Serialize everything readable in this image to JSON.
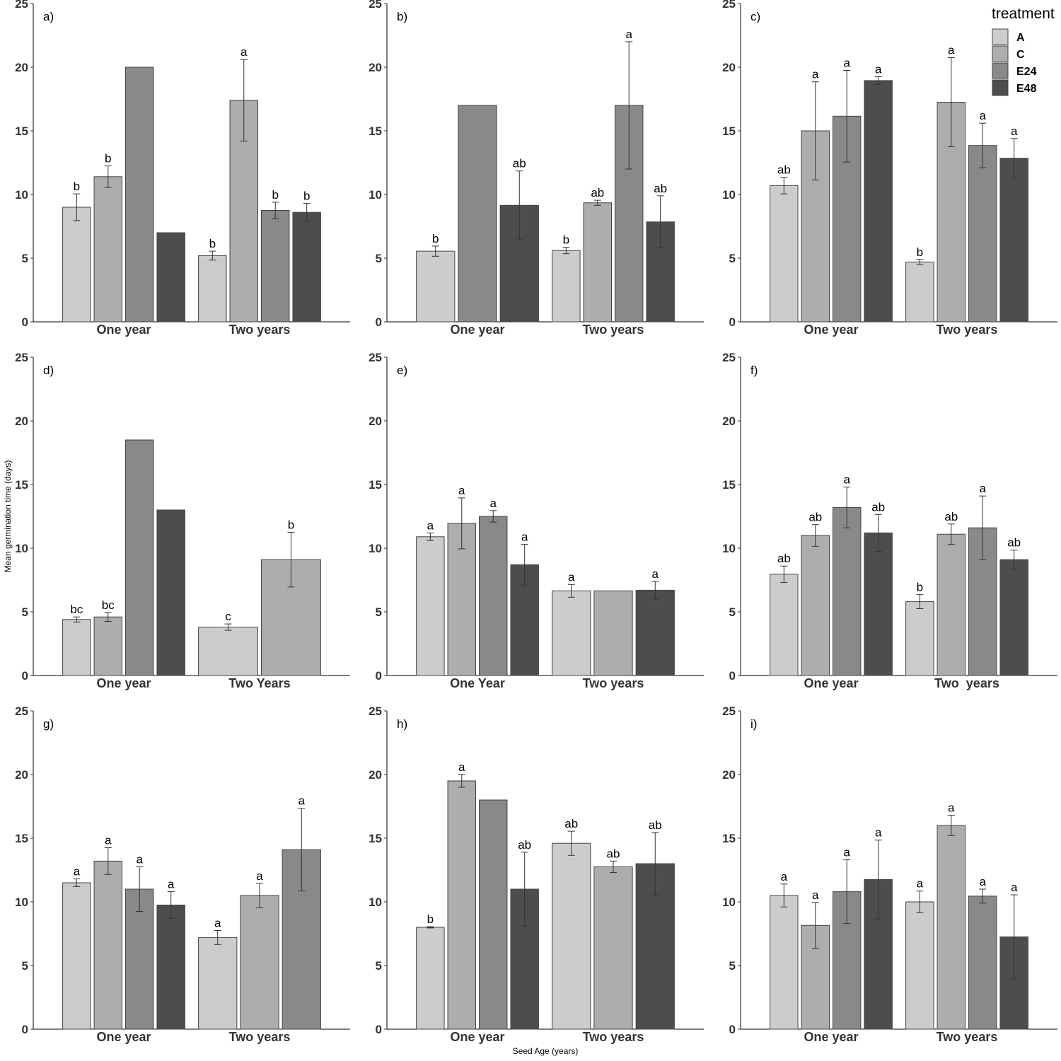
{
  "figure": {
    "ylabel": "Mean germination time (days)",
    "xlabel": "Seed Age (years)"
  },
  "legend": {
    "title": "treatment",
    "placement": "top-right",
    "entries": [
      {
        "name": "A",
        "color": "#cccccc"
      },
      {
        "name": "C",
        "color": "#adadad"
      },
      {
        "name": "E24",
        "color": "#898989"
      },
      {
        "name": "E48",
        "color": "#4d4d4d"
      }
    ]
  },
  "colors": {
    "A": "#cccccc",
    "C": "#adadad",
    "E24": "#898989",
    "E48": "#4d4d4d"
  },
  "chart_data": [
    {
      "type": "bar",
      "panel": "a)",
      "ylim": [
        0,
        25
      ],
      "yticks": [
        0,
        5,
        10,
        15,
        20,
        25
      ],
      "grid": false,
      "groups": [
        {
          "label": "One year",
          "bars": [
            {
              "t": "A",
              "value": 9.0,
              "err": 1.05,
              "sig": "b"
            },
            {
              "t": "C",
              "value": 11.4,
              "err": 0.85,
              "sig": "b"
            },
            {
              "t": "E24",
              "value": 20.0,
              "err": null,
              "sig": ""
            },
            {
              "t": "E48",
              "value": 7.0,
              "err": null,
              "sig": ""
            }
          ]
        },
        {
          "label": "Two years",
          "bars": [
            {
              "t": "A",
              "value": 5.2,
              "err": 0.35,
              "sig": "b"
            },
            {
              "t": "C",
              "value": 17.4,
              "err": 3.2,
              "sig": "a"
            },
            {
              "t": "E24",
              "value": 8.75,
              "err": 0.65,
              "sig": "b"
            },
            {
              "t": "E48",
              "value": 8.6,
              "err": 0.7,
              "sig": "b"
            }
          ]
        }
      ]
    },
    {
      "type": "bar",
      "panel": "b)",
      "ylim": [
        0,
        25
      ],
      "yticks": [
        0,
        5,
        10,
        15,
        20,
        25
      ],
      "grid": false,
      "groups": [
        {
          "label": "One year",
          "bars": [
            {
              "t": "A",
              "value": 5.55,
              "err": 0.4,
              "sig": "b"
            },
            {
              "t": "E24",
              "value": 17.0,
              "err": null,
              "sig": ""
            },
            {
              "t": "E48",
              "value": 9.15,
              "err": 2.7,
              "sig": "ab"
            }
          ]
        },
        {
          "label": "Two years",
          "bars": [
            {
              "t": "A",
              "value": 5.6,
              "err": 0.25,
              "sig": "b"
            },
            {
              "t": "C",
              "value": 9.35,
              "err": 0.2,
              "sig": "ab"
            },
            {
              "t": "E24",
              "value": 17.0,
              "err": 5.0,
              "sig": "a"
            },
            {
              "t": "E48",
              "value": 7.85,
              "err": 2.05,
              "sig": "ab"
            }
          ]
        }
      ]
    },
    {
      "type": "bar",
      "panel": "c)",
      "ylim": [
        0,
        25
      ],
      "yticks": [
        0,
        5,
        10,
        15,
        20,
        25
      ],
      "grid": false,
      "groups": [
        {
          "label": "One year",
          "bars": [
            {
              "t": "A",
              "value": 10.7,
              "err": 0.65,
              "sig": "ab"
            },
            {
              "t": "C",
              "value": 15.0,
              "err": 3.85,
              "sig": "a"
            },
            {
              "t": "E24",
              "value": 16.15,
              "err": 3.6,
              "sig": "a"
            },
            {
              "t": "E48",
              "value": 18.95,
              "err": 0.3,
              "sig": "a"
            }
          ]
        },
        {
          "label": "Two years",
          "bars": [
            {
              "t": "A",
              "value": 4.7,
              "err": 0.2,
              "sig": "b"
            },
            {
              "t": "C",
              "value": 17.25,
              "err": 3.5,
              "sig": "a"
            },
            {
              "t": "E24",
              "value": 13.85,
              "err": 1.75,
              "sig": "a"
            },
            {
              "t": "E48",
              "value": 12.85,
              "err": 1.55,
              "sig": "a"
            }
          ]
        }
      ]
    },
    {
      "type": "bar",
      "panel": "d)",
      "ylim": [
        0,
        25
      ],
      "yticks": [
        0,
        5,
        10,
        15,
        20,
        25
      ],
      "grid": false,
      "groups": [
        {
          "label": "One year",
          "bars": [
            {
              "t": "A",
              "value": 4.4,
              "err": 0.2,
              "sig": "bc"
            },
            {
              "t": "C",
              "value": 4.6,
              "err": 0.35,
              "sig": "bc"
            },
            {
              "t": "E24",
              "value": 18.5,
              "err": null,
              "sig": ""
            },
            {
              "t": "E48",
              "value": 13.0,
              "err": null,
              "sig": ""
            }
          ]
        },
        {
          "label": "Two Years",
          "bars": [
            {
              "t": "A",
              "value": 3.8,
              "err": 0.25,
              "sig": "c"
            },
            {
              "t": "C",
              "value": 9.1,
              "err": 2.15,
              "sig": "b"
            }
          ]
        }
      ]
    },
    {
      "type": "bar",
      "panel": "e)",
      "ylim": [
        0,
        25
      ],
      "yticks": [
        0,
        5,
        10,
        15,
        20,
        25
      ],
      "grid": false,
      "groups": [
        {
          "label": "One Year",
          "bars": [
            {
              "t": "A",
              "value": 10.9,
              "err": 0.3,
              "sig": "a"
            },
            {
              "t": "C",
              "value": 11.95,
              "err": 2.0,
              "sig": "a"
            },
            {
              "t": "E24",
              "value": 12.5,
              "err": 0.45,
              "sig": "a"
            },
            {
              "t": "E48",
              "value": 8.7,
              "err": 1.6,
              "sig": "a"
            }
          ]
        },
        {
          "label": "Two years",
          "bars": [
            {
              "t": "A",
              "value": 6.65,
              "err": 0.5,
              "sig": "a"
            },
            {
              "t": "C",
              "value": 6.65,
              "err": null,
              "sig": ""
            },
            {
              "t": "E48",
              "value": 6.7,
              "err": 0.7,
              "sig": "a"
            }
          ]
        }
      ]
    },
    {
      "type": "bar",
      "panel": "f)",
      "ylim": [
        0,
        25
      ],
      "yticks": [
        0,
        5,
        10,
        15,
        20,
        25
      ],
      "grid": false,
      "groups": [
        {
          "label": "One year",
          "bars": [
            {
              "t": "A",
              "value": 7.95,
              "err": 0.65,
              "sig": "ab"
            },
            {
              "t": "C",
              "value": 11.0,
              "err": 0.85,
              "sig": "ab"
            },
            {
              "t": "E24",
              "value": 13.2,
              "err": 1.6,
              "sig": "a"
            },
            {
              "t": "E48",
              "value": 11.2,
              "err": 1.45,
              "sig": "ab"
            }
          ]
        },
        {
          "label": "Two  years",
          "bars": [
            {
              "t": "A",
              "value": 5.8,
              "err": 0.55,
              "sig": "b"
            },
            {
              "t": "C",
              "value": 11.1,
              "err": 0.8,
              "sig": "ab"
            },
            {
              "t": "E24",
              "value": 11.6,
              "err": 2.5,
              "sig": "a"
            },
            {
              "t": "E48",
              "value": 9.1,
              "err": 0.75,
              "sig": "ab"
            }
          ]
        }
      ]
    },
    {
      "type": "bar",
      "panel": "g)",
      "ylim": [
        0,
        25
      ],
      "yticks": [
        0,
        5,
        10,
        15,
        20,
        25
      ],
      "grid": false,
      "groups": [
        {
          "label": "One year",
          "bars": [
            {
              "t": "A",
              "value": 11.5,
              "err": 0.3,
              "sig": "a"
            },
            {
              "t": "C",
              "value": 13.2,
              "err": 1.05,
              "sig": "a"
            },
            {
              "t": "E24",
              "value": 11.0,
              "err": 1.75,
              "sig": "a"
            },
            {
              "t": "E48",
              "value": 9.75,
              "err": 1.05,
              "sig": "a"
            }
          ]
        },
        {
          "label": "Two years",
          "bars": [
            {
              "t": "A",
              "value": 7.2,
              "err": 0.55,
              "sig": "a"
            },
            {
              "t": "C",
              "value": 10.5,
              "err": 0.95,
              "sig": "a"
            },
            {
              "t": "E24",
              "value": 14.1,
              "err": 3.25,
              "sig": "a"
            }
          ]
        }
      ]
    },
    {
      "type": "bar",
      "panel": "h)",
      "ylim": [
        0,
        25
      ],
      "yticks": [
        0,
        5,
        10,
        15,
        20,
        25
      ],
      "grid": false,
      "groups": [
        {
          "label": "One year",
          "bars": [
            {
              "t": "A",
              "value": 8.0,
              "err": 0.05,
              "sig": "b"
            },
            {
              "t": "C",
              "value": 19.5,
              "err": 0.5,
              "sig": "a"
            },
            {
              "t": "E24",
              "value": 18.0,
              "err": null,
              "sig": ""
            },
            {
              "t": "E48",
              "value": 11.0,
              "err": 2.9,
              "sig": "ab"
            }
          ]
        },
        {
          "label": "Two years",
          "bars": [
            {
              "t": "A",
              "value": 14.6,
              "err": 0.95,
              "sig": "ab"
            },
            {
              "t": "C",
              "value": 12.75,
              "err": 0.45,
              "sig": "ab"
            },
            {
              "t": "E48",
              "value": 13.0,
              "err": 2.45,
              "sig": "ab"
            }
          ]
        }
      ]
    },
    {
      "type": "bar",
      "panel": "i)",
      "ylim": [
        0,
        25
      ],
      "yticks": [
        0,
        5,
        10,
        15,
        20,
        25
      ],
      "grid": false,
      "groups": [
        {
          "label": "One year",
          "bars": [
            {
              "t": "A",
              "value": 10.5,
              "err": 0.9,
              "sig": "a"
            },
            {
              "t": "C",
              "value": 8.15,
              "err": 1.8,
              "sig": "a"
            },
            {
              "t": "E24",
              "value": 10.8,
              "err": 2.5,
              "sig": "a"
            },
            {
              "t": "E48",
              "value": 11.75,
              "err": 3.1,
              "sig": "a"
            }
          ]
        },
        {
          "label": "Two years",
          "bars": [
            {
              "t": "A",
              "value": 10.0,
              "err": 0.85,
              "sig": "a"
            },
            {
              "t": "C",
              "value": 16.0,
              "err": 0.8,
              "sig": "a"
            },
            {
              "t": "E24",
              "value": 10.45,
              "err": 0.55,
              "sig": "a"
            },
            {
              "t": "E48",
              "value": 7.25,
              "err": 3.3,
              "sig": "a"
            }
          ]
        }
      ]
    }
  ]
}
